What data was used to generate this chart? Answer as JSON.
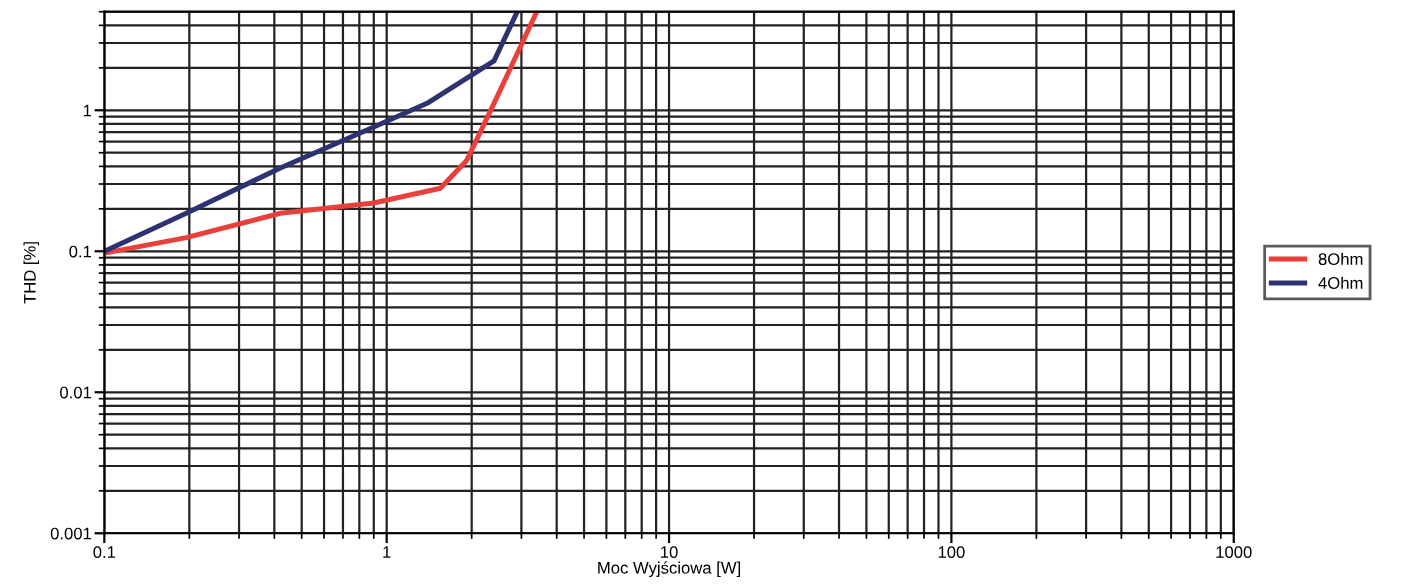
{
  "chart_data": {
    "type": "line",
    "xlabel": "Moc Wyjściowa [W]",
    "ylabel": "THD [%]",
    "log": "xy",
    "grid": true,
    "legend": "right",
    "xlim": [
      0.1,
      1000
    ],
    "xticks": [
      0.1,
      1,
      10,
      100,
      1000
    ],
    "ylim": [
      0.001,
      5
    ],
    "yticks": [
      0.001,
      0.01,
      0.1,
      1
    ],
    "series": [
      {
        "name": "8Ohm",
        "color": "#e8413c",
        "x": [
          0.1,
          0.195,
          0.42,
          0.9,
          1.55,
          1.92,
          2.4,
          3.4
        ],
        "values": [
          0.097,
          0.125,
          0.186,
          0.22,
          0.28,
          0.44,
          1.12,
          5
        ]
      },
      {
        "name": "4Ohm",
        "color": "#2e3270",
        "x": [
          0.1,
          0.195,
          0.42,
          0.9,
          1.39,
          2.4,
          2.9
        ],
        "values": [
          0.1,
          0.186,
          0.39,
          0.76,
          1.12,
          2.24,
          5
        ]
      }
    ]
  }
}
